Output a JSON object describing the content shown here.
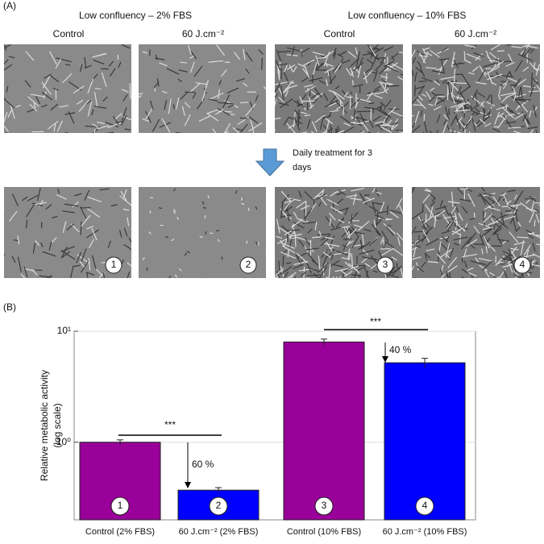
{
  "panel_a": {
    "label": "(A)",
    "group_titles": [
      "Low confluency – 2% FBS",
      "Low confluency – 10% FBS"
    ],
    "column_labels": [
      "Control",
      "60 J.cm⁻²",
      "Control",
      "60 J.cm⁻²"
    ],
    "arrow_text": [
      "Daily treatment for 3",
      "days"
    ],
    "image_labels": [
      "1",
      "2",
      "3",
      "4"
    ]
  },
  "chart_data": {
    "type": "bar",
    "panel_label": "(B)",
    "y_label": [
      "Relative metabolic activity",
      "(log scale)"
    ],
    "categories": [
      "Control (2% FBS)",
      "60 J.cm⁻² (2% FBS)",
      "Control (10% FBS)",
      "60 J.cm⁻² (10% FBS)"
    ],
    "values": [
      1.0,
      0.37,
      8.0,
      5.2
    ],
    "errors": [
      0.05,
      0.02,
      0.5,
      0.5
    ],
    "colors": [
      "#990099",
      "#0000ff",
      "#990099",
      "#0000ff"
    ],
    "bar_labels": [
      "1",
      "2",
      "3",
      "4"
    ],
    "significance": [
      "***",
      "***"
    ],
    "reductions": [
      "60 %",
      "40 %"
    ],
    "log_scale": true,
    "ylim": [
      0.2,
      10
    ],
    "yticks": [
      {
        "value": 1,
        "label": "10⁰"
      },
      {
        "value": 10,
        "label": "10¹"
      }
    ],
    "grid": true
  }
}
